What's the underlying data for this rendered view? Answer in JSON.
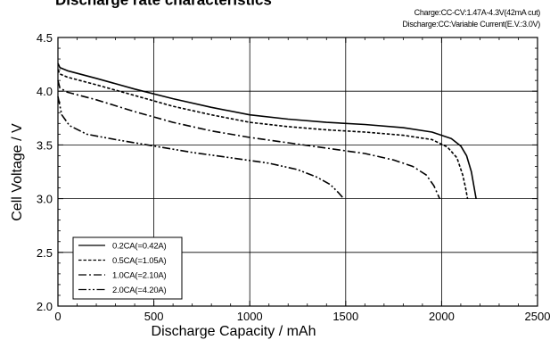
{
  "chart_data": {
    "type": "line",
    "title": "Discharge rate characteristics",
    "notes": [
      "Charge:CC-CV:1.47A-4.3V(42mA cut)",
      "Discharge:CC:Variable Current(E.V.:3.0V)"
    ],
    "xlabel": "Discharge  Capacity  /  mAh",
    "ylabel": "Cell  Voltage  /  V",
    "xlim": [
      0,
      2500
    ],
    "ylim": [
      2.0,
      4.5
    ],
    "x_ticks": [
      "0",
      "500",
      "1000",
      "1500",
      "2000",
      "2500"
    ],
    "y_ticks": [
      "2.0",
      "2.5",
      "3.0",
      "3.5",
      "4.0",
      "4.5"
    ],
    "grid": true,
    "legend_position": "bottom-left",
    "series": [
      {
        "name": "0.2CA(=0.42A)",
        "dash": "solid",
        "points": [
          [
            0,
            4.26
          ],
          [
            10,
            4.22
          ],
          [
            50,
            4.19
          ],
          [
            200,
            4.12
          ],
          [
            400,
            4.02
          ],
          [
            600,
            3.93
          ],
          [
            800,
            3.85
          ],
          [
            1000,
            3.78
          ],
          [
            1200,
            3.74
          ],
          [
            1400,
            3.71
          ],
          [
            1600,
            3.69
          ],
          [
            1800,
            3.66
          ],
          [
            1950,
            3.62
          ],
          [
            2050,
            3.56
          ],
          [
            2100,
            3.49
          ],
          [
            2130,
            3.4
          ],
          [
            2155,
            3.25
          ],
          [
            2170,
            3.1
          ],
          [
            2180,
            3.0
          ]
        ]
      },
      {
        "name": "0.5CA(=1.05A)",
        "dash": "dashed",
        "points": [
          [
            0,
            4.2
          ],
          [
            10,
            4.16
          ],
          [
            50,
            4.13
          ],
          [
            200,
            4.06
          ],
          [
            400,
            3.96
          ],
          [
            600,
            3.86
          ],
          [
            800,
            3.78
          ],
          [
            1000,
            3.71
          ],
          [
            1200,
            3.67
          ],
          [
            1400,
            3.64
          ],
          [
            1600,
            3.62
          ],
          [
            1800,
            3.59
          ],
          [
            1950,
            3.55
          ],
          [
            2030,
            3.48
          ],
          [
            2080,
            3.38
          ],
          [
            2110,
            3.22
          ],
          [
            2125,
            3.1
          ],
          [
            2135,
            3.0
          ]
        ]
      },
      {
        "name": "1.0CA(=2.10A)",
        "dash": "dash-dot",
        "points": [
          [
            0,
            4.1
          ],
          [
            10,
            4.03
          ],
          [
            50,
            3.99
          ],
          [
            200,
            3.92
          ],
          [
            400,
            3.81
          ],
          [
            600,
            3.71
          ],
          [
            800,
            3.63
          ],
          [
            1000,
            3.57
          ],
          [
            1200,
            3.52
          ],
          [
            1400,
            3.47
          ],
          [
            1600,
            3.42
          ],
          [
            1750,
            3.36
          ],
          [
            1850,
            3.3
          ],
          [
            1920,
            3.22
          ],
          [
            1960,
            3.12
          ],
          [
            1990,
            3.0
          ]
        ]
      },
      {
        "name": "2.0CA(=4.20A)",
        "dash": "dash-dot-dot",
        "points": [
          [
            0,
            3.95
          ],
          [
            20,
            3.78
          ],
          [
            60,
            3.68
          ],
          [
            150,
            3.6
          ],
          [
            300,
            3.55
          ],
          [
            500,
            3.49
          ],
          [
            700,
            3.43
          ],
          [
            900,
            3.38
          ],
          [
            1100,
            3.33
          ],
          [
            1250,
            3.27
          ],
          [
            1350,
            3.2
          ],
          [
            1420,
            3.13
          ],
          [
            1460,
            3.06
          ],
          [
            1490,
            3.0
          ]
        ]
      }
    ]
  }
}
